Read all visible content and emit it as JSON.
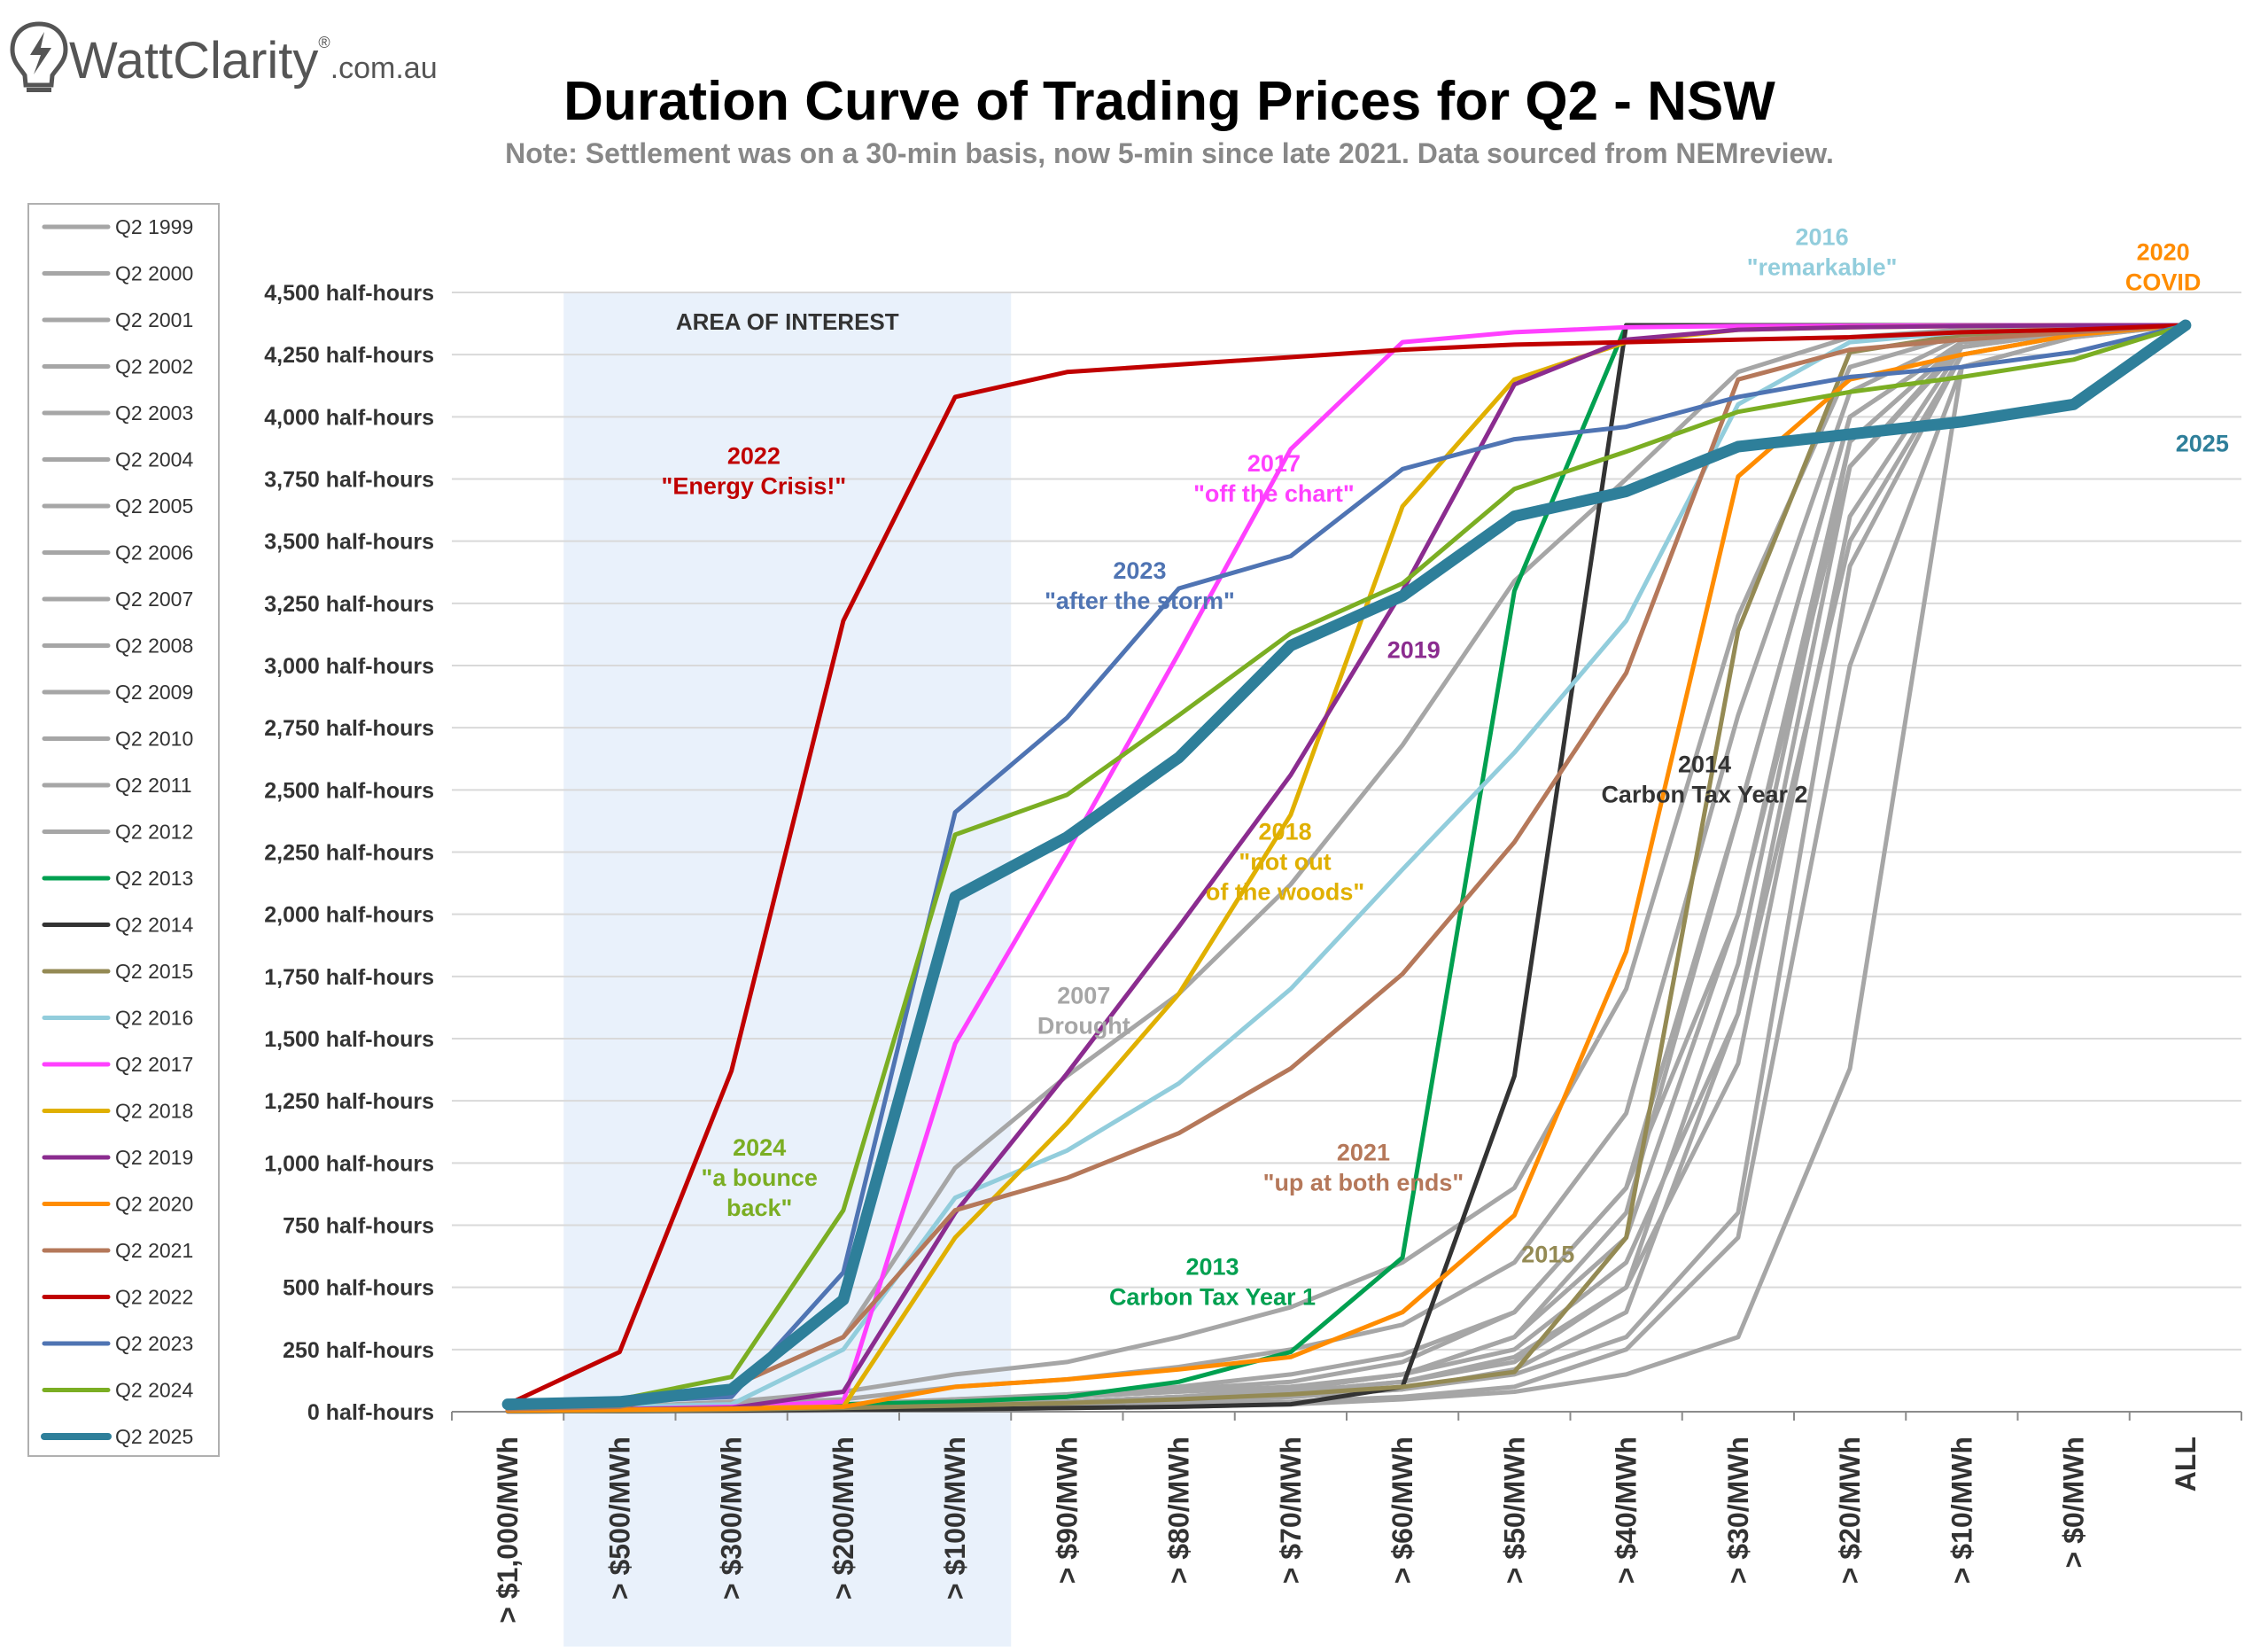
{
  "brand": {
    "name": "WattClarity",
    "reg": "®",
    "suffix": ".com.au"
  },
  "chart_data": {
    "type": "line",
    "title": "Duration Curve of Trading Prices for Q2 - NSW",
    "subtitle": "Note: Settlement was on a 30-min basis, now 5-min since late 2021. Data sourced from NEMreview.",
    "xlabel": "",
    "ylabel": "",
    "ylim": [
      0,
      4500
    ],
    "y_tick_suffix": " half-hours",
    "y_ticks": [
      0,
      250,
      500,
      750,
      1000,
      1250,
      1500,
      1750,
      2000,
      2250,
      2500,
      2750,
      3000,
      3250,
      3500,
      3750,
      4000,
      4250,
      4500
    ],
    "categories": [
      "> $1,000/MWh",
      "> $500/MWh",
      "> $300/MWh",
      "> $200/MWh",
      "> $100/MWh",
      "> $90/MWh",
      "> $80/MWh",
      "> $70/MWh",
      "> $60/MWh",
      "> $50/MWh",
      "> $40/MWh",
      "> $30/MWh",
      "> $20/MWh",
      "> $10/MWh",
      "> $0/MWh",
      "ALL"
    ],
    "grid": true,
    "legend_position": "left",
    "highlight": {
      "label": "AREA OF INTEREST",
      "from_category": 0.5,
      "to_category": 4.5,
      "color": "#e9f1fb"
    },
    "series": [
      {
        "name": "Q2 1999",
        "color": "#a6a6a6",
        "values": [
          5,
          10,
          20,
          30,
          50,
          60,
          80,
          100,
          150,
          300,
          800,
          2400,
          4000,
          4300,
          4340,
          4368
        ]
      },
      {
        "name": "Q2 2000",
        "color": "#a6a6a6",
        "values": [
          10,
          15,
          30,
          50,
          100,
          130,
          180,
          250,
          350,
          600,
          1200,
          2800,
          4100,
          4320,
          4350,
          4368
        ]
      },
      {
        "name": "Q2 2001",
        "color": "#a6a6a6",
        "values": [
          3,
          5,
          10,
          20,
          40,
          60,
          90,
          120,
          200,
          400,
          900,
          2000,
          3900,
          4300,
          4340,
          4368
        ]
      },
      {
        "name": "Q2 2002",
        "color": "#a6a6a6",
        "values": [
          2,
          4,
          8,
          15,
          30,
          40,
          60,
          80,
          120,
          200,
          500,
          1400,
          3600,
          4280,
          4340,
          4368
        ]
      },
      {
        "name": "Q2 2003",
        "color": "#a6a6a6",
        "values": [
          2,
          5,
          10,
          20,
          30,
          40,
          60,
          90,
          150,
          250,
          600,
          1600,
          3800,
          4300,
          4340,
          4368
        ]
      },
      {
        "name": "Q2 2004",
        "color": "#a6a6a6",
        "values": [
          1,
          3,
          5,
          10,
          20,
          30,
          40,
          60,
          90,
          150,
          300,
          800,
          3400,
          4250,
          4330,
          4368
        ]
      },
      {
        "name": "Q2 2005",
        "color": "#a6a6a6",
        "values": [
          1,
          2,
          4,
          8,
          15,
          20,
          30,
          40,
          60,
          100,
          250,
          700,
          3000,
          4200,
          4320,
          4368
        ]
      },
      {
        "name": "Q2 2006",
        "color": "#a6a6a6",
        "values": [
          2,
          4,
          8,
          15,
          30,
          40,
          60,
          80,
          120,
          220,
          500,
          1800,
          3900,
          4300,
          4340,
          4368
        ]
      },
      {
        "name": "Q2 2007",
        "color": "#a6a6a6",
        "values": [
          30,
          50,
          100,
          300,
          980,
          1350,
          1680,
          2120,
          2680,
          3340,
          3750,
          4180,
          4320,
          4350,
          4360,
          4368
        ]
      },
      {
        "name": "Q2 2008",
        "color": "#a6a6a6",
        "values": [
          10,
          20,
          40,
          80,
          150,
          200,
          300,
          420,
          600,
          900,
          1700,
          3200,
          4200,
          4330,
          4350,
          4368
        ]
      },
      {
        "name": "Q2 2009",
        "color": "#a6a6a6",
        "values": [
          3,
          6,
          12,
          25,
          50,
          70,
          100,
          150,
          230,
          400,
          900,
          2400,
          4000,
          4300,
          4340,
          4368
        ]
      },
      {
        "name": "Q2 2010",
        "color": "#a6a6a6",
        "values": [
          2,
          4,
          8,
          15,
          30,
          40,
          60,
          90,
          150,
          300,
          700,
          2000,
          3800,
          4280,
          4340,
          4368
        ]
      },
      {
        "name": "Q2 2011",
        "color": "#a6a6a6",
        "values": [
          1,
          3,
          6,
          10,
          20,
          30,
          40,
          60,
          90,
          170,
          400,
          1600,
          3500,
          4250,
          4330,
          4368
        ]
      },
      {
        "name": "Q2 2012",
        "color": "#a6a6a6",
        "values": [
          1,
          2,
          3,
          5,
          10,
          15,
          20,
          30,
          50,
          80,
          150,
          300,
          1380,
          4200,
          4320,
          4368
        ]
      },
      {
        "name": "Q2 2013",
        "color": "#00a050",
        "values": [
          5,
          10,
          20,
          30,
          40,
          60,
          120,
          240,
          620,
          3300,
          4368,
          4368,
          4368,
          4368,
          4368,
          4368
        ]
      },
      {
        "name": "Q2 2014",
        "color": "#333333",
        "values": [
          2,
          3,
          5,
          8,
          10,
          15,
          20,
          30,
          100,
          1350,
          4368,
          4368,
          4368,
          4368,
          4368,
          4368
        ]
      },
      {
        "name": "Q2 2015",
        "color": "#948a54",
        "values": [
          2,
          4,
          8,
          15,
          25,
          35,
          50,
          70,
          100,
          160,
          700,
          3140,
          4260,
          4330,
          4350,
          4368
        ]
      },
      {
        "name": "Q2 2016",
        "color": "#92cddc",
        "values": [
          10,
          20,
          30,
          250,
          860,
          1050,
          1320,
          1700,
          2180,
          2650,
          3180,
          4050,
          4300,
          4340,
          4350,
          4368
        ]
      },
      {
        "name": "Q2 2017",
        "color": "#ff40ff",
        "values": [
          5,
          10,
          20,
          40,
          1480,
          2250,
          3050,
          3870,
          4300,
          4340,
          4360,
          4365,
          4366,
          4367,
          4368,
          4368
        ]
      },
      {
        "name": "Q2 2018",
        "color": "#e0b000",
        "values": [
          5,
          10,
          15,
          20,
          700,
          1160,
          1680,
          2400,
          3640,
          4150,
          4300,
          4350,
          4360,
          4365,
          4368,
          4368
        ]
      },
      {
        "name": "Q2 2019",
        "color": "#8b2c8f",
        "values": [
          5,
          10,
          15,
          80,
          800,
          1360,
          1950,
          2560,
          3300,
          4130,
          4310,
          4350,
          4360,
          4365,
          4368,
          4368
        ]
      },
      {
        "name": "Q2 2020",
        "color": "#ff8c00",
        "values": [
          5,
          8,
          12,
          20,
          100,
          130,
          170,
          220,
          400,
          790,
          1850,
          3760,
          4150,
          4250,
          4330,
          4368
        ]
      },
      {
        "name": "Q2 2021",
        "color": "#b5785a",
        "values": [
          10,
          20,
          100,
          300,
          810,
          940,
          1120,
          1380,
          1760,
          2290,
          2970,
          4150,
          4270,
          4310,
          4340,
          4368
        ]
      },
      {
        "name": "Q2 2022",
        "color": "#c00000",
        "values": [
          30,
          240,
          1370,
          3180,
          4080,
          4180,
          4210,
          4240,
          4270,
          4290,
          4300,
          4310,
          4320,
          4340,
          4350,
          4368
        ]
      },
      {
        "name": "Q2 2023",
        "color": "#4f74b3",
        "values": [
          30,
          40,
          60,
          560,
          2410,
          2790,
          3310,
          3440,
          3790,
          3910,
          3960,
          4080,
          4160,
          4200,
          4260,
          4368
        ]
      },
      {
        "name": "Q2 2024",
        "color": "#7bae23",
        "values": [
          30,
          50,
          140,
          810,
          2320,
          2480,
          2800,
          3130,
          3330,
          3710,
          3860,
          4020,
          4100,
          4160,
          4230,
          4368
        ]
      },
      {
        "name": "Q2 2025",
        "color": "#2e7f9a",
        "values": [
          30,
          40,
          90,
          450,
          2070,
          2310,
          2630,
          3080,
          3280,
          3600,
          3700,
          3880,
          3930,
          3980,
          4050,
          4368
        ]
      }
    ],
    "annotations": [
      {
        "lines": [
          "2022",
          "\"Energy Crisis!\""
        ],
        "color": "#c00000",
        "x": 2.2,
        "y": 3810
      },
      {
        "lines": [
          "2017",
          "\"off the chart\""
        ],
        "color": "#ff40ff",
        "x": 6.85,
        "y": 3780
      },
      {
        "lines": [
          "2023",
          "\"after the storm\""
        ],
        "color": "#4f74b3",
        "x": 5.65,
        "y": 3350
      },
      {
        "lines": [
          "2019"
        ],
        "color": "#8b2c8f",
        "x": 8.1,
        "y": 3030
      },
      {
        "lines": [
          "2016",
          "\"remarkable\""
        ],
        "color": "#92cddc",
        "x": 11.75,
        "y": 4690
      },
      {
        "lines": [
          "2020",
          "COVID"
        ],
        "color": "#ff8c00",
        "x": 14.8,
        "y": 4630
      },
      {
        "lines": [
          "2025"
        ],
        "color": "#2e7f9a",
        "x": 15.15,
        "y": 3860
      },
      {
        "lines": [
          "2014",
          "Carbon Tax Year 2"
        ],
        "color": "#333333",
        "x": 10.7,
        "y": 2570
      },
      {
        "lines": [
          "2018",
          "\"not out",
          "of the woods\""
        ],
        "color": "#e0b000",
        "x": 6.95,
        "y": 2300
      },
      {
        "lines": [
          "2007",
          "Drought"
        ],
        "color": "#a6a6a6",
        "x": 5.15,
        "y": 1640
      },
      {
        "lines": [
          "2024",
          "\"a bounce",
          "back\""
        ],
        "color": "#7bae23",
        "x": 2.25,
        "y": 1030
      },
      {
        "lines": [
          "2021",
          "\"up at both ends\""
        ],
        "color": "#b5785a",
        "x": 7.65,
        "y": 1010
      },
      {
        "lines": [
          "2013",
          "Carbon Tax Year 1"
        ],
        "color": "#00a050",
        "x": 6.3,
        "y": 550
      },
      {
        "lines": [
          "2015"
        ],
        "color": "#948a54",
        "x": 9.3,
        "y": 600
      }
    ]
  }
}
